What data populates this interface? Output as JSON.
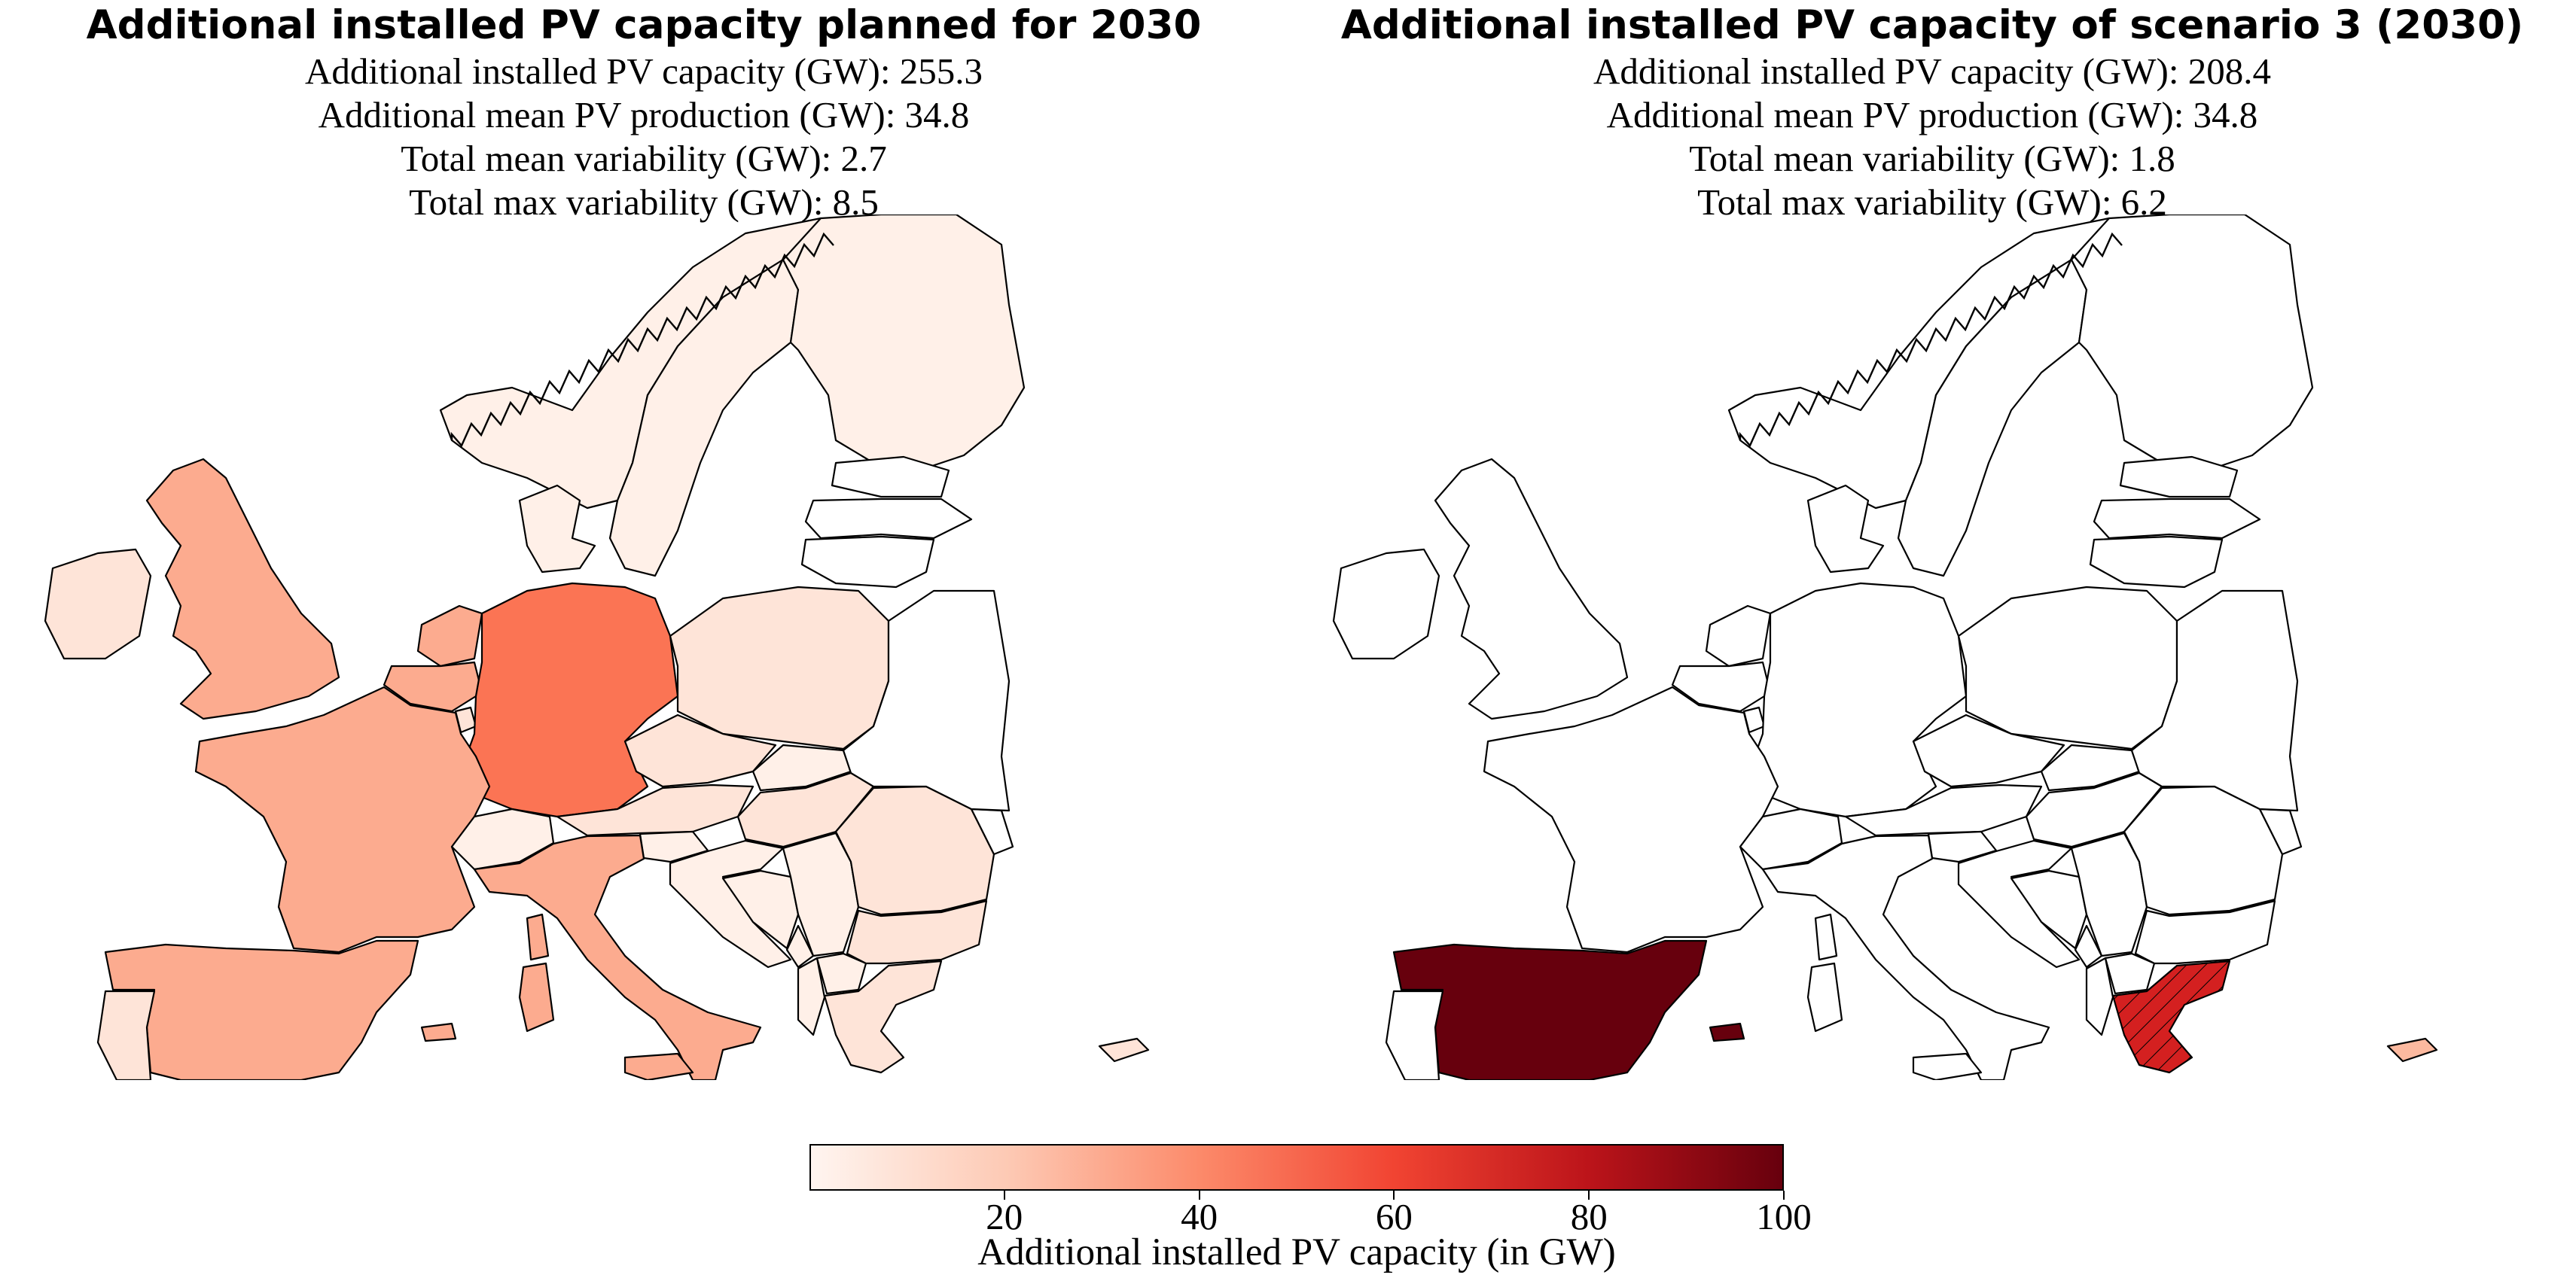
{
  "left_panel": {
    "title": "Additional installed PV capacity planned for 2030",
    "stats": [
      "Additional installed PV capacity (GW): 255.3",
      "Additional mean PV production (GW): 34.8",
      "Total mean variability (GW): 2.7",
      "Total max variability (GW): 8.5"
    ]
  },
  "right_panel": {
    "title": "Additional installed PV capacity of scenario 3 (2030)",
    "stats": [
      "Additional installed PV capacity (GW): 208.4",
      "Additional mean PV production (GW): 34.8",
      "Total mean variability (GW): 1.8",
      "Total max variability (GW): 6.2"
    ]
  },
  "colorbar": {
    "label": "Additional installed PV capacity (in GW)",
    "range": [
      0,
      100
    ],
    "ticks": [
      "20",
      "40",
      "60",
      "80",
      "100"
    ],
    "colormap": [
      "#fff5f0",
      "#fdcab5",
      "#fc8a6a",
      "#f14432",
      "#bc141a",
      "#67000d"
    ]
  },
  "map_fills": {
    "empty": "#ffffff",
    "very_light": "#fff0e8",
    "light": "#fee4d8",
    "medium": "#fcab8f",
    "strong": "#fb7454",
    "red": "#d42020",
    "dark": "#67000d",
    "cyprus_right": "#fcb99f"
  }
}
